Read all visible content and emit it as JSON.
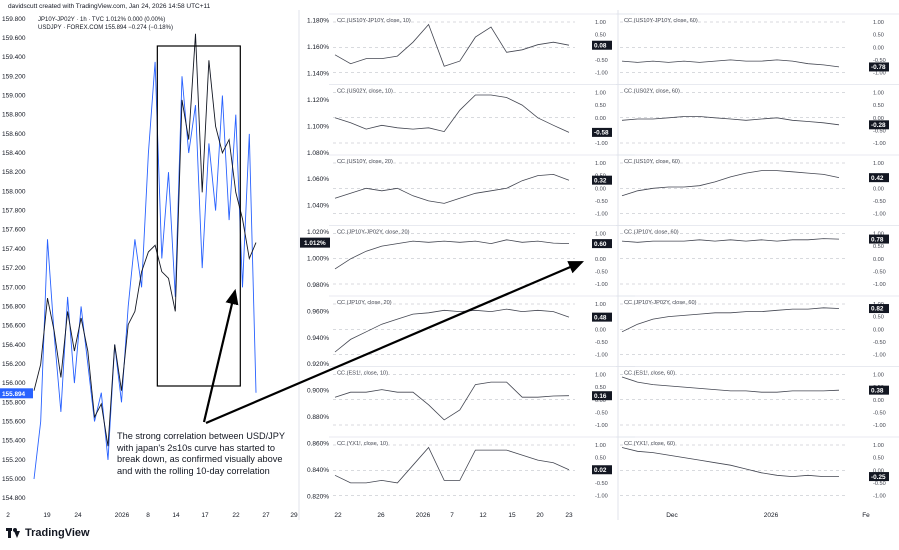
{
  "credit": "davidscutt created with TradingView.com, Jan 24, 2026 14:58 UTC+11",
  "brand": "TradingView",
  "annotation": "The strong correlation between USD/JPY with japan's 2s10s curve has started to break down, as confirmed visually above and with the rolling 10-day correlation",
  "colors": {
    "jp": "#131722",
    "usdjpy": "#2962ff",
    "corr": "#434651",
    "tag_dark": "#131722",
    "tag_blue": "#2962ff",
    "box": "#000000"
  },
  "chart_data": [
    {
      "type": "line",
      "title": "",
      "legend": [
        {
          "label": "JP10Y-JP02Y · 1h · TVC",
          "value": "1.012%",
          "change": "0.000 (0.00%)"
        },
        {
          "label": "USDJPY · FOREX.COM",
          "value": "155.894",
          "change": "−0.274 (−0.18%)"
        }
      ],
      "x_ticks": [
        "2",
        "19",
        "24",
        "2026",
        "8",
        "14",
        "17",
        "22",
        "27",
        "29"
      ],
      "left_axis": {
        "ticks": [
          "159.800",
          "159.600",
          "159.400",
          "159.200",
          "159.000",
          "158.800",
          "158.600",
          "158.400",
          "158.200",
          "158.000",
          "157.800",
          "157.600",
          "157.400",
          "157.200",
          "157.000",
          "156.800",
          "156.600",
          "156.400",
          "156.200",
          "156.000",
          "155.800",
          "155.600",
          "155.400",
          "155.200",
          "155.000",
          "154.800"
        ],
        "range": [
          154.75,
          159.85
        ],
        "last_label": "155.894"
      },
      "right_axis": {
        "ticks": [
          "1.180%",
          "1.160%",
          "1.140%",
          "1.120%",
          "1.100%",
          "1.080%",
          "1.060%",
          "1.040%",
          "1.020%",
          "1.000%",
          "0.980%",
          "0.960%",
          "0.940%",
          "0.920%",
          "0.900%",
          "0.880%",
          "0.860%",
          "0.840%",
          "0.820%"
        ],
        "range": [
          0.815,
          1.185
        ],
        "last_label": "1.012%"
      },
      "series": [
        {
          "name": "USDJPY · FOREX.COM",
          "axis": "left",
          "x": [
            0,
            3,
            6,
            9,
            12,
            15,
            18,
            21,
            24,
            27,
            30,
            33,
            36,
            39,
            42,
            45,
            48,
            51,
            54,
            57,
            60,
            63,
            66,
            69,
            72,
            75,
            78,
            81,
            84,
            87,
            90,
            93,
            96,
            99
          ],
          "values": [
            155.0,
            155.6,
            157.5,
            156.5,
            155.7,
            156.9,
            156.0,
            156.8,
            156.2,
            155.6,
            155.9,
            155.2,
            156.4,
            155.8,
            156.8,
            157.5,
            157.0,
            158.4,
            159.35,
            157.3,
            158.2,
            156.9,
            159.2,
            158.4,
            158.9,
            157.2,
            158.5,
            157.8,
            159.0,
            157.7,
            158.8,
            157.0,
            158.6,
            155.9
          ]
        },
        {
          "name": "JP10Y-JP02Y · 1h · TVC",
          "axis": "right",
          "x": [
            0,
            3,
            6,
            9,
            12,
            15,
            18,
            21,
            24,
            27,
            30,
            33,
            36,
            39,
            42,
            45,
            48,
            51,
            54,
            57,
            60,
            63,
            66,
            69,
            72,
            75,
            78,
            81,
            84,
            87,
            90,
            93,
            96,
            99
          ],
          "values": [
            0.9,
            0.92,
            0.97,
            0.945,
            0.91,
            0.96,
            0.93,
            0.955,
            0.93,
            0.88,
            0.89,
            0.858,
            0.935,
            0.9,
            0.95,
            0.96,
            0.99,
            1.005,
            1.01,
            0.99,
            0.985,
            0.96,
            1.12,
            1.09,
            1.17,
            1.05,
            1.15,
            1.1,
            1.08,
            1.09,
            1.05,
            1.03,
            1.0,
            1.012
          ]
        }
      ],
      "highlight_box": {
        "from_x": 55,
        "to_x": 92,
        "label": ""
      }
    },
    {
      "type": "line",
      "panes": "correlation-short",
      "x_ticks": [
        "22",
        "26",
        "2026",
        "7",
        "12",
        "15",
        "20",
        "23"
      ],
      "pane_ticks": [
        "1.00",
        "0.50",
        "0.00",
        "-0.50",
        "-1.00"
      ],
      "series": [
        {
          "name": "CC (US10Y-JP10Y, close, 10)",
          "last": "0.08",
          "values": [
            -0.3,
            -0.65,
            -0.45,
            -0.45,
            -0.35,
            0.2,
            0.9,
            -0.75,
            -0.55,
            0.4,
            0.8,
            -0.2,
            -0.1,
            0.1,
            0.2,
            0.08
          ]
        },
        {
          "name": "CC (US02Y, close, 10)",
          "last": "-0.58",
          "values": [
            0.0,
            -0.2,
            -0.45,
            -0.3,
            -0.4,
            -0.45,
            -0.4,
            -0.55,
            0.3,
            0.9,
            0.9,
            0.8,
            0.5,
            0.0,
            -0.3,
            -0.58
          ]
        },
        {
          "name": "CC (US10Y, close, 20)",
          "last": "0.32",
          "values": [
            -0.4,
            -0.2,
            0.0,
            -0.1,
            0.0,
            -0.3,
            -0.5,
            -0.6,
            -0.4,
            -0.2,
            -0.1,
            0.0,
            0.3,
            0.5,
            0.55,
            0.32
          ]
        },
        {
          "name": "CC (JP10Y-JP02Y, close, 20)",
          "last": "0.60",
          "values": [
            -0.4,
            0.0,
            0.3,
            0.5,
            0.6,
            0.7,
            0.65,
            0.7,
            0.65,
            0.7,
            0.6,
            0.75,
            0.65,
            0.7,
            0.62,
            0.6
          ]
        },
        {
          "name": "CC (JP10Y, close, 20)",
          "last": "0.48",
          "values": [
            -0.9,
            -0.4,
            -0.1,
            0.2,
            0.4,
            0.6,
            0.65,
            0.75,
            0.7,
            0.75,
            0.7,
            0.8,
            0.7,
            0.75,
            0.7,
            0.48
          ]
        },
        {
          "name": "CC (ES1!, close, 10)",
          "last": "0.16",
          "values": [
            0.1,
            0.3,
            0.3,
            0.4,
            0.3,
            0.3,
            -0.2,
            -0.8,
            -0.4,
            0.6,
            0.7,
            0.7,
            0.1,
            0.1,
            0.15,
            0.16
          ]
        },
        {
          "name": "CC (YX1!, close, 10)",
          "last": "0.02",
          "values": [
            -0.2,
            -0.5,
            -0.5,
            -0.4,
            -0.5,
            0.2,
            0.9,
            -0.4,
            -0.4,
            0.8,
            0.8,
            0.8,
            0.6,
            0.4,
            0.3,
            0.02
          ]
        }
      ]
    },
    {
      "type": "line",
      "panes": "correlation-long",
      "x_ticks": [
        "Dec",
        "2026",
        "Fe"
      ],
      "pane_ticks": [
        "1.00",
        "0.50",
        "0.00",
        "-0.50",
        "-1.00"
      ],
      "series": [
        {
          "name": "CC (US10Y-JP10Y, close, 60)",
          "last": "-0.78",
          "values": [
            -0.55,
            -0.6,
            -0.55,
            -0.6,
            -0.55,
            -0.6,
            -0.55,
            -0.5,
            -0.55,
            -0.55,
            -0.5,
            -0.55,
            -0.65,
            -0.7,
            -0.78
          ]
        },
        {
          "name": "CC (US02Y, close, 60)",
          "last": "-0.28",
          "values": [
            -0.1,
            -0.05,
            -0.05,
            0.0,
            0.05,
            0.05,
            0.0,
            -0.05,
            -0.1,
            -0.05,
            0.0,
            -0.1,
            -0.15,
            -0.2,
            -0.28
          ]
        },
        {
          "name": "CC (US10Y, close, 60)",
          "last": "0.42",
          "values": [
            -0.3,
            -0.1,
            0.0,
            0.05,
            0.05,
            0.1,
            0.25,
            0.45,
            0.6,
            0.7,
            0.7,
            0.65,
            0.6,
            0.55,
            0.42
          ]
        },
        {
          "name": "CC (JP10Y, close, 60)",
          "last": "0.78",
          "values": [
            0.7,
            0.65,
            0.7,
            0.7,
            0.7,
            0.75,
            0.7,
            0.75,
            0.7,
            0.75,
            0.7,
            0.75,
            0.75,
            0.8,
            0.78
          ]
        },
        {
          "name": "CC (JP10Y-JP02Y, close, 60)",
          "last": "0.82",
          "values": [
            -0.1,
            0.2,
            0.4,
            0.5,
            0.55,
            0.6,
            0.65,
            0.65,
            0.7,
            0.7,
            0.75,
            0.8,
            0.8,
            0.85,
            0.82
          ]
        },
        {
          "name": "CC (ES1!, close, 60)",
          "last": "0.38",
          "values": [
            0.9,
            0.7,
            0.6,
            0.55,
            0.5,
            0.45,
            0.4,
            0.35,
            0.35,
            0.3,
            0.3,
            0.35,
            0.35,
            0.35,
            0.38
          ]
        },
        {
          "name": "CC (YX1!, close, 60)",
          "last": "-0.25",
          "values": [
            0.9,
            0.75,
            0.7,
            0.6,
            0.5,
            0.4,
            0.3,
            0.2,
            0.05,
            -0.1,
            -0.2,
            -0.25,
            -0.2,
            -0.25,
            -0.25
          ]
        }
      ]
    }
  ]
}
